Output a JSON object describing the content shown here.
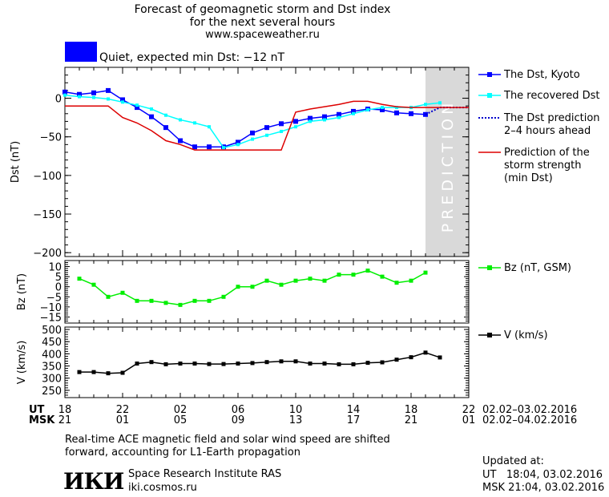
{
  "header": {
    "title_line1": "Forecast of geomagnetic storm and Dst index",
    "title_line2": "for the next several hours",
    "title_line3": "www.spaceweather.ru",
    "status_color": "#0000ff",
    "status_text": "Quiet, expected min Dst: −12 nT"
  },
  "prediction_label": "PREDICTION",
  "colors": {
    "dst_kyoto": "#0000ff",
    "dst_recovered": "#00ffff",
    "dst_prediction": "#0000cc",
    "storm_strength": "#dd0000",
    "bz": "#00ee00",
    "v": "#000000",
    "prediction_band": "#d9d9d9"
  },
  "legend": {
    "kyoto": "The Dst, Kyoto",
    "recovered": "The recovered Dst",
    "prediction_line1": "The Dst prediction",
    "prediction_line2": "2–4 hours ahead",
    "storm_line1": "Prediction of the",
    "storm_line2": "storm strength",
    "storm_line3": "(min Dst)",
    "bz": "Bz (nT, GSM)",
    "v": "V (km/s)"
  },
  "xaxis": {
    "ut_label": "UT",
    "msk_label": "MSK",
    "ut_ticks": [
      "18",
      "22",
      "02",
      "06",
      "10",
      "14",
      "18",
      "22"
    ],
    "msk_ticks": [
      "21",
      "01",
      "05",
      "09",
      "13",
      "17",
      "21",
      "01"
    ],
    "ut_range": "02.02–03.02.2016",
    "msk_range": "02.02–04.02.2016"
  },
  "footer": {
    "note_line1": "Real-time ACE magnetic field and solar wind speed are shifted",
    "note_line2": "forward, accounting for L1-Earth propagation",
    "logo_text": "ИКИ",
    "institute": "Space Research Institute RAS",
    "website": "iki.cosmos.ru",
    "updated_label": "Updated at:",
    "updated_ut": "UT   18:04, 03.02.2016",
    "updated_msk": "MSK 21:04, 03.02.2016"
  },
  "chart_data": [
    {
      "type": "line",
      "ylabel": "Dst (nT)",
      "ylim": [
        -205,
        40
      ],
      "yticks": [
        0,
        -50,
        -100,
        -150,
        -200
      ],
      "xlim": [
        0,
        28
      ],
      "prediction_region": [
        25,
        29
      ],
      "series": [
        {
          "name": "The Dst, Kyoto",
          "x": [
            0,
            1,
            2,
            3,
            4,
            5,
            6,
            7,
            8,
            9,
            10,
            11,
            12,
            13,
            14,
            15,
            16,
            17,
            18,
            19,
            20,
            21,
            22,
            23,
            24,
            25
          ],
          "y": [
            8,
            5,
            7,
            10,
            -2,
            -12,
            -24,
            -38,
            -55,
            -63,
            -63,
            -63,
            -57,
            -45,
            -38,
            -33,
            -30,
            -26,
            -24,
            -21,
            -17,
            -14,
            -15,
            -19,
            -20,
            -21
          ]
        },
        {
          "name": "The recovered Dst",
          "x": [
            0,
            1,
            2,
            3,
            4,
            5,
            6,
            7,
            8,
            9,
            10,
            11,
            12,
            13,
            14,
            15,
            16,
            17,
            18,
            19,
            20,
            21,
            22,
            23,
            24,
            25,
            26
          ],
          "y": [
            4,
            2,
            1,
            -1,
            -5,
            -9,
            -14,
            -22,
            -28,
            -32,
            -37,
            -64,
            -60,
            -53,
            -48,
            -43,
            -37,
            -30,
            -28,
            -25,
            -20,
            -15,
            -12,
            -12,
            -12,
            -8,
            -6
          ]
        },
        {
          "name": "The Dst prediction 2–4 hours ahead",
          "x": [
            25,
            26,
            27,
            28
          ],
          "y": [
            -21,
            -12,
            -12,
            -12
          ]
        },
        {
          "name": "Prediction of the storm strength (min Dst)",
          "x": [
            0,
            3,
            4,
            5,
            6,
            7,
            8,
            9,
            10,
            11,
            12,
            13,
            14,
            15,
            16,
            17,
            18,
            19,
            20,
            21,
            22,
            23,
            24,
            25,
            26,
            27,
            28
          ],
          "y": [
            -10,
            -10,
            -25,
            -32,
            -42,
            -55,
            -60,
            -67,
            -67,
            -67,
            -67,
            -67,
            -67,
            -67,
            -18,
            -14,
            -11,
            -8,
            -4,
            -4,
            -8,
            -11,
            -12,
            -12,
            -12,
            -12,
            -12
          ]
        }
      ]
    },
    {
      "type": "line",
      "ylabel": "Bz (nT)",
      "ylim": [
        -18,
        13
      ],
      "yticks": [
        10,
        5,
        0,
        -5,
        -10,
        -15
      ],
      "xlim": [
        0,
        28
      ],
      "series": [
        {
          "name": "Bz (nT, GSM)",
          "x": [
            1,
            2,
            3,
            4,
            5,
            6,
            7,
            8,
            9,
            10,
            11,
            12,
            13,
            14,
            15,
            16,
            17,
            18,
            19,
            20,
            21,
            22,
            23,
            24,
            25,
            26
          ],
          "y": [
            4,
            1,
            -5,
            -3,
            -7,
            -7,
            -8,
            -9,
            -7,
            -7,
            -5,
            0,
            0,
            3,
            1,
            3,
            4,
            3,
            6,
            6,
            8,
            5,
            2,
            3,
            7,
            null
          ]
        }
      ]
    },
    {
      "type": "line",
      "ylabel": "V (km/s)",
      "ylim": [
        220,
        510
      ],
      "yticks": [
        500,
        450,
        400,
        350,
        300,
        250
      ],
      "xlim": [
        0,
        28
      ],
      "series": [
        {
          "name": "V (km/s)",
          "x": [
            1,
            2,
            3,
            4,
            5,
            6,
            7,
            8,
            9,
            10,
            11,
            12,
            13,
            14,
            15,
            16,
            17,
            18,
            19,
            20,
            21,
            22,
            23,
            24,
            25,
            26
          ],
          "y": [
            325,
            325,
            320,
            322,
            360,
            366,
            357,
            360,
            360,
            358,
            358,
            360,
            362,
            366,
            369,
            369,
            360,
            360,
            357,
            357,
            363,
            365,
            376,
            386,
            405,
            385
          ]
        }
      ]
    }
  ]
}
